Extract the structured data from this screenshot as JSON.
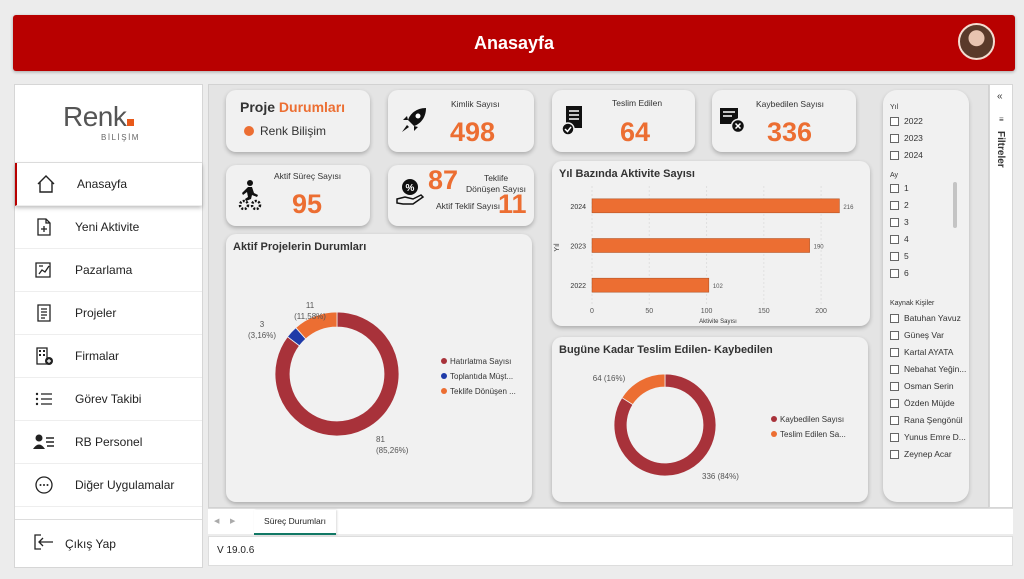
{
  "header": {
    "title": "Anasayfa"
  },
  "logo": {
    "name": "Renk",
    "sub": "BİLİŞİM"
  },
  "nav": {
    "items": [
      {
        "label": "Anasayfa",
        "icon": "home-icon"
      },
      {
        "label": "Yeni Aktivite",
        "icon": "new-document-icon"
      },
      {
        "label": "Pazarlama",
        "icon": "marketing-chart-icon"
      },
      {
        "label": "Projeler",
        "icon": "document-list-icon"
      },
      {
        "label": "Firmalar",
        "icon": "building-add-icon"
      },
      {
        "label": "Görev Takibi",
        "icon": "task-list-icon"
      },
      {
        "label": "RB Personel",
        "icon": "person-card-icon"
      },
      {
        "label": "Diğer Uygulamalar",
        "icon": "more-circle-icon"
      }
    ],
    "logout": "Çıkış Yap"
  },
  "project_card": {
    "title_a": "Proje ",
    "title_b": "Durumları",
    "company": "Renk Bilişim"
  },
  "kpis": {
    "kimlik": {
      "label": "Kimlik Sayısı",
      "value": "498"
    },
    "teslim": {
      "label": "Teslim Edilen",
      "value": "64"
    },
    "kaybedilen": {
      "label": "Kaybedilen Sayısı",
      "value": "336"
    },
    "aktif_surec": {
      "label": "Aktif Süreç Sayısı",
      "value": "95"
    },
    "teklife_donusen": {
      "label": "Teklife Dönüşen Sayısı",
      "value": "87"
    },
    "aktif_teklif": {
      "label": "Aktif Teklif Sayısı",
      "value": "11"
    }
  },
  "colors": {
    "accent": "#EC6E32",
    "brand_red": "#B80000",
    "donut_red": "#A8323A",
    "blue": "#1F3AA8"
  },
  "chart_data": [
    {
      "type": "bar",
      "title": "Yıl Bazında Aktivite Sayısı",
      "categories": [
        "2024",
        "2023",
        "2022"
      ],
      "values": [
        216,
        190,
        102
      ],
      "xlabel": "Aktivite Sayısı",
      "ylabel": "Yıl",
      "xlim": [
        0,
        220
      ],
      "xticks": [
        0,
        50,
        100,
        150,
        200
      ],
      "grid": true
    },
    {
      "type": "pie",
      "title": "Aktif Projelerin Durumları",
      "labels": [
        "Hatırlatma Sayısı",
        "Toplantıda Müşt...",
        "Teklife Dönüşen ..."
      ],
      "values": [
        81,
        3,
        11
      ],
      "data_labels": [
        "81\n(85,26%)",
        "3\n(3,16%)",
        "11\n(11,58%)"
      ],
      "colors": [
        "#A8323A",
        "#1F3AA8",
        "#EC6E32"
      ],
      "legend": "right"
    },
    {
      "type": "pie",
      "title": "Bugüne Kadar Teslim Edilen- Kaybedilen",
      "labels": [
        "Kaybedilen Sayısı",
        "Teslim Edilen Sa..."
      ],
      "values": [
        336,
        64
      ],
      "data_labels": [
        "336 (84%)",
        "64 (16%)"
      ],
      "colors": [
        "#A8323A",
        "#EC6E32"
      ],
      "legend": "right"
    }
  ],
  "filters": {
    "year_title": "Yıl",
    "years": [
      "2022",
      "2023",
      "2024"
    ],
    "month_title": "Ay",
    "months": [
      "1",
      "2",
      "3",
      "4",
      "5",
      "6"
    ],
    "people_title": "Kaynak Kişiler",
    "people": [
      "Batuhan Yavuz",
      "Güneş Var",
      "Kartal AYATA",
      "Nebahat Yeğin...",
      "Osman Serin",
      "Özden Müjde",
      "Rana Şengönül",
      "Yunus Emre D...",
      "Zeynep Acar"
    ]
  },
  "rail": {
    "label": "Filtreler"
  },
  "tabs": {
    "active": "Süreç Durumları"
  },
  "footer": {
    "version": "V 19.0.6"
  }
}
